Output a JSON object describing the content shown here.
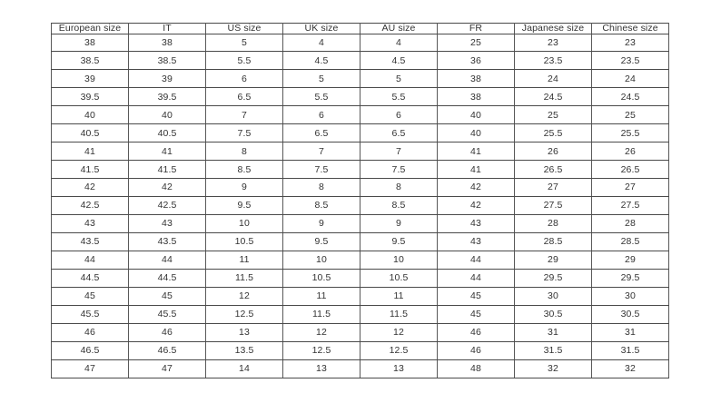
{
  "chart_data": {
    "type": "table",
    "columns": [
      "European size",
      "IT",
      "US size",
      "UK size",
      "AU size",
      "FR",
      "Japanese size",
      "Chinese size"
    ],
    "rows": [
      [
        "38",
        "38",
        "5",
        "4",
        "4",
        "25",
        "23",
        "23"
      ],
      [
        "38.5",
        "38.5",
        "5.5",
        "4.5",
        "4.5",
        "36",
        "23.5",
        "23.5"
      ],
      [
        "39",
        "39",
        "6",
        "5",
        "5",
        "38",
        "24",
        "24"
      ],
      [
        "39.5",
        "39.5",
        "6.5",
        "5.5",
        "5.5",
        "38",
        "24.5",
        "24.5"
      ],
      [
        "40",
        "40",
        "7",
        "6",
        "6",
        "40",
        "25",
        "25"
      ],
      [
        "40.5",
        "40.5",
        "7.5",
        "6.5",
        "6.5",
        "40",
        "25.5",
        "25.5"
      ],
      [
        "41",
        "41",
        "8",
        "7",
        "7",
        "41",
        "26",
        "26"
      ],
      [
        "41.5",
        "41.5",
        "8.5",
        "7.5",
        "7.5",
        "41",
        "26.5",
        "26.5"
      ],
      [
        "42",
        "42",
        "9",
        "8",
        "8",
        "42",
        "27",
        "27"
      ],
      [
        "42.5",
        "42.5",
        "9.5",
        "8.5",
        "8.5",
        "42",
        "27.5",
        "27.5"
      ],
      [
        "43",
        "43",
        "10",
        "9",
        "9",
        "43",
        "28",
        "28"
      ],
      [
        "43.5",
        "43.5",
        "10.5",
        "9.5",
        "9.5",
        "43",
        "28.5",
        "28.5"
      ],
      [
        "44",
        "44",
        "11",
        "10",
        "10",
        "44",
        "29",
        "29"
      ],
      [
        "44.5",
        "44.5",
        "11.5",
        "10.5",
        "10.5",
        "44",
        "29.5",
        "29.5"
      ],
      [
        "45",
        "45",
        "12",
        "11",
        "11",
        "45",
        "30",
        "30"
      ],
      [
        "45.5",
        "45.5",
        "12.5",
        "11.5",
        "11.5",
        "45",
        "30.5",
        "30.5"
      ],
      [
        "46",
        "46",
        "13",
        "12",
        "12",
        "46",
        "31",
        "31"
      ],
      [
        "46.5",
        "46.5",
        "13.5",
        "12.5",
        "12.5",
        "46",
        "31.5",
        "31.5"
      ],
      [
        "47",
        "47",
        "14",
        "13",
        "13",
        "48",
        "32",
        "32"
      ]
    ]
  },
  "colors": {
    "background": "#ffffff",
    "border": "#4a4a4a",
    "text": "#333333"
  }
}
